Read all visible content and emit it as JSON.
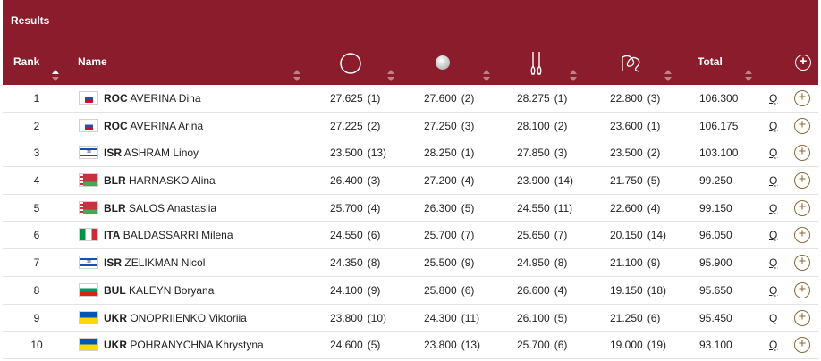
{
  "header": {
    "title": "Results",
    "rank_label": "Rank",
    "name_label": "Name",
    "total_label": "Total",
    "apparatus_icons": [
      "hoop-icon",
      "ball-icon",
      "clubs-icon",
      "ribbon-icon"
    ],
    "expand_icon": "plus-circle-icon"
  },
  "colors": {
    "header_bg": "#8a1c2b",
    "accent": "#8a6a3a"
  },
  "rows": [
    {
      "rank": "1",
      "noc": "ROC",
      "flag": "roc",
      "name": "AVERINA Dina",
      "hoop": "27.625",
      "hoop_rank": "(1)",
      "ball": "27.600",
      "ball_rank": "(2)",
      "clubs": "28.275",
      "clubs_rank": "(1)",
      "ribbon": "22.800",
      "ribbon_rank": "(3)",
      "total": "106.300",
      "q": "Q"
    },
    {
      "rank": "2",
      "noc": "ROC",
      "flag": "roc",
      "name": "AVERINA Arina",
      "hoop": "27.225",
      "hoop_rank": "(2)",
      "ball": "27.250",
      "ball_rank": "(3)",
      "clubs": "28.100",
      "clubs_rank": "(2)",
      "ribbon": "23.600",
      "ribbon_rank": "(1)",
      "total": "106.175",
      "q": "Q"
    },
    {
      "rank": "3",
      "noc": "ISR",
      "flag": "isr",
      "name": "ASHRAM Linoy",
      "hoop": "23.500",
      "hoop_rank": "(13)",
      "ball": "28.250",
      "ball_rank": "(1)",
      "clubs": "27.850",
      "clubs_rank": "(3)",
      "ribbon": "23.500",
      "ribbon_rank": "(2)",
      "total": "103.100",
      "q": "Q"
    },
    {
      "rank": "4",
      "noc": "BLR",
      "flag": "blr",
      "name": "HARNASKO Alina",
      "hoop": "26.400",
      "hoop_rank": "(3)",
      "ball": "27.200",
      "ball_rank": "(4)",
      "clubs": "23.900",
      "clubs_rank": "(14)",
      "ribbon": "21.750",
      "ribbon_rank": "(5)",
      "total": "99.250",
      "q": "Q"
    },
    {
      "rank": "5",
      "noc": "BLR",
      "flag": "blr",
      "name": "SALOS Anastasiia",
      "hoop": "25.700",
      "hoop_rank": "(4)",
      "ball": "26.300",
      "ball_rank": "(5)",
      "clubs": "24.550",
      "clubs_rank": "(11)",
      "ribbon": "22.600",
      "ribbon_rank": "(4)",
      "total": "99.150",
      "q": "Q"
    },
    {
      "rank": "6",
      "noc": "ITA",
      "flag": "ita",
      "name": "BALDASSARRI Milena",
      "hoop": "24.550",
      "hoop_rank": "(6)",
      "ball": "25.700",
      "ball_rank": "(7)",
      "clubs": "25.650",
      "clubs_rank": "(7)",
      "ribbon": "20.150",
      "ribbon_rank": "(14)",
      "total": "96.050",
      "q": "Q"
    },
    {
      "rank": "7",
      "noc": "ISR",
      "flag": "isr",
      "name": "ZELIKMAN Nicol",
      "hoop": "24.350",
      "hoop_rank": "(8)",
      "ball": "25.500",
      "ball_rank": "(9)",
      "clubs": "24.950",
      "clubs_rank": "(8)",
      "ribbon": "21.100",
      "ribbon_rank": "(9)",
      "total": "95.900",
      "q": "Q"
    },
    {
      "rank": "8",
      "noc": "BUL",
      "flag": "bul",
      "name": "KALEYN Boryana",
      "hoop": "24.100",
      "hoop_rank": "(9)",
      "ball": "25.800",
      "ball_rank": "(6)",
      "clubs": "26.600",
      "clubs_rank": "(4)",
      "ribbon": "19.150",
      "ribbon_rank": "(18)",
      "total": "95.650",
      "q": "Q"
    },
    {
      "rank": "9",
      "noc": "UKR",
      "flag": "ukr",
      "name": "ONOPRIIENKO Viktoriia",
      "hoop": "23.800",
      "hoop_rank": "(10)",
      "ball": "24.300",
      "ball_rank": "(11)",
      "clubs": "26.100",
      "clubs_rank": "(5)",
      "ribbon": "21.250",
      "ribbon_rank": "(6)",
      "total": "95.450",
      "q": "Q"
    },
    {
      "rank": "10",
      "noc": "UKR",
      "flag": "ukr",
      "name": "POHRANYCHNA Khrystyna",
      "hoop": "24.600",
      "hoop_rank": "(5)",
      "ball": "23.800",
      "ball_rank": "(13)",
      "clubs": "25.700",
      "clubs_rank": "(6)",
      "ribbon": "19.000",
      "ribbon_rank": "(19)",
      "total": "93.100",
      "q": "Q"
    }
  ]
}
